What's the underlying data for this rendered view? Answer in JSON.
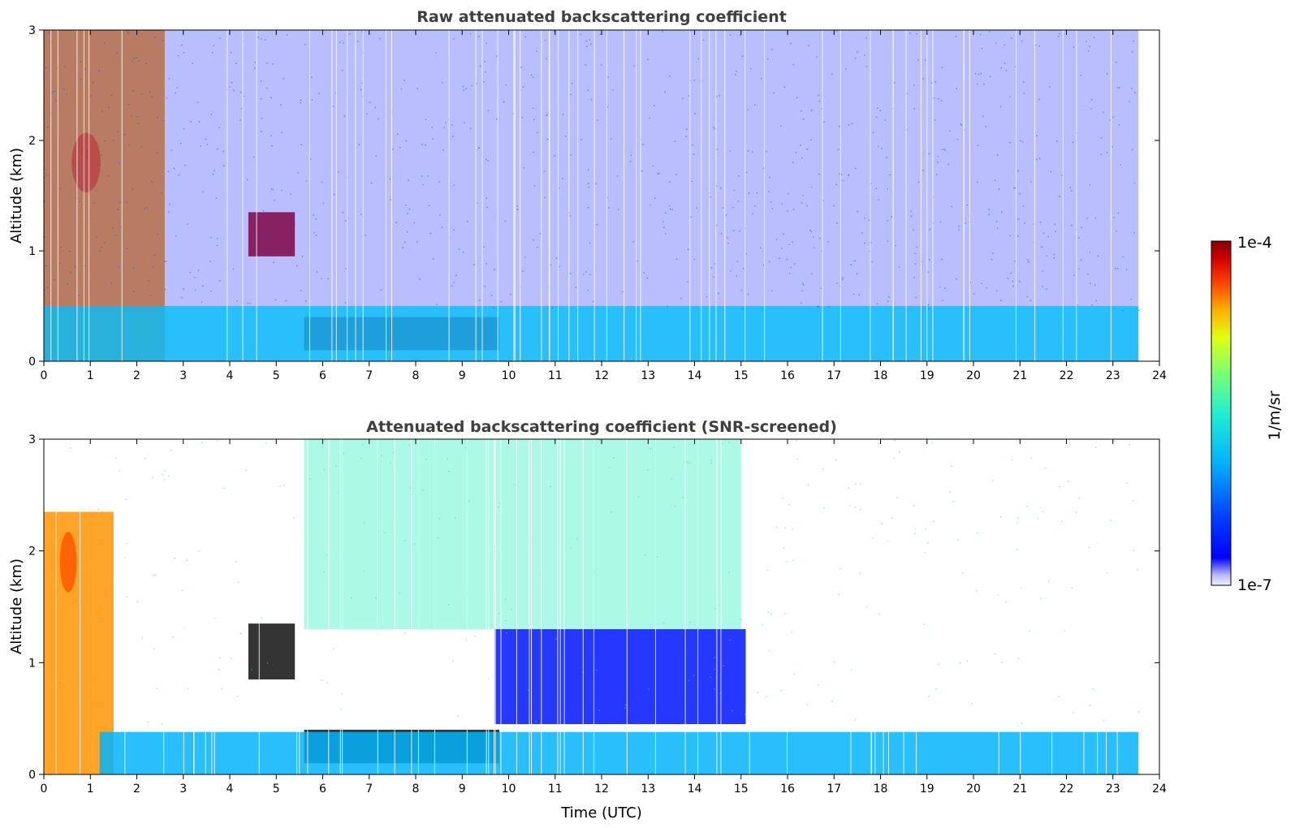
{
  "chart_data": [
    {
      "type": "heatmap",
      "title": "Raw attenuated backscattering coefficient",
      "xlabel": "",
      "ylabel": "Altitude (km)",
      "xlim": [
        0,
        24
      ],
      "ylim": [
        0,
        3
      ],
      "xticks": [
        "0",
        "1",
        "2",
        "3",
        "4",
        "5",
        "6",
        "7",
        "8",
        "9",
        "10",
        "11",
        "12",
        "13",
        "14",
        "15",
        "16",
        "17",
        "18",
        "19",
        "20",
        "21",
        "22",
        "23",
        "24"
      ],
      "yticks": [
        "0",
        "1",
        "2",
        "3"
      ],
      "data_end_hour": 23.55,
      "features": [
        {
          "name": "aerosol plume",
          "t_start": 0.0,
          "t_end": 2.6,
          "alt_bottom": 0.0,
          "alt_top": 3.0,
          "peak_alt": 1.8,
          "intensity": "high"
        },
        {
          "name": "elevated cloud",
          "t_start": 4.4,
          "t_end": 5.4,
          "alt_bottom": 0.95,
          "alt_top": 1.35,
          "intensity": "very high"
        },
        {
          "name": "low stratus",
          "t_start": 5.6,
          "t_end": 9.8,
          "alt_bottom": 0.1,
          "alt_top": 0.4,
          "intensity": "very high"
        },
        {
          "name": "boundary layer",
          "t_start": 0.0,
          "t_end": 23.55,
          "alt_bottom": 0.0,
          "alt_top": 0.5,
          "intensity": "medium"
        },
        {
          "name": "background noise",
          "t_start": 0.0,
          "t_end": 23.55,
          "alt_bottom": 0.5,
          "alt_top": 3.0,
          "intensity": "low"
        }
      ]
    },
    {
      "type": "heatmap",
      "title": "Attenuated backscattering coefficient (SNR-screened)",
      "xlabel": "Time (UTC)",
      "ylabel": "Altitude (km)",
      "xlim": [
        0,
        24
      ],
      "ylim": [
        0,
        3
      ],
      "xticks": [
        "0",
        "1",
        "2",
        "3",
        "4",
        "5",
        "6",
        "7",
        "8",
        "9",
        "10",
        "11",
        "12",
        "13",
        "14",
        "15",
        "16",
        "17",
        "18",
        "19",
        "20",
        "21",
        "22",
        "23",
        "24"
      ],
      "yticks": [
        "0",
        "1",
        "2",
        "3"
      ],
      "data_end_hour": 23.55,
      "features": [
        {
          "name": "aerosol plume",
          "t_start": 0.0,
          "t_end": 1.5,
          "alt_bottom": 0.0,
          "alt_top": 2.35,
          "peak_alt": 1.9,
          "intensity": "high"
        },
        {
          "name": "elevated cloud",
          "t_start": 4.4,
          "t_end": 5.4,
          "alt_bottom": 0.85,
          "alt_top": 1.35,
          "intensity": "saturated"
        },
        {
          "name": "low stratus",
          "t_start": 5.6,
          "t_end": 9.8,
          "alt_bottom": 0.1,
          "alt_top": 0.4,
          "intensity": "saturated"
        },
        {
          "name": "residual layer",
          "t_start": 9.7,
          "t_end": 15.1,
          "alt_bottom": 0.45,
          "alt_top": 1.3,
          "intensity": "low"
        },
        {
          "name": "mid-level aerosol",
          "t_start": 5.6,
          "t_end": 15.0,
          "alt_bottom": 1.3,
          "alt_top": 3.0,
          "intensity": "medium-low"
        },
        {
          "name": "boundary layer",
          "t_start": 1.2,
          "t_end": 23.55,
          "alt_bottom": 0.0,
          "alt_top": 0.38,
          "intensity": "medium"
        }
      ]
    }
  ],
  "colorbar": {
    "label": "1/m/sr",
    "max_label": "1e-4",
    "min_label": "1e-7",
    "scale": "log",
    "colormap": "jet"
  }
}
